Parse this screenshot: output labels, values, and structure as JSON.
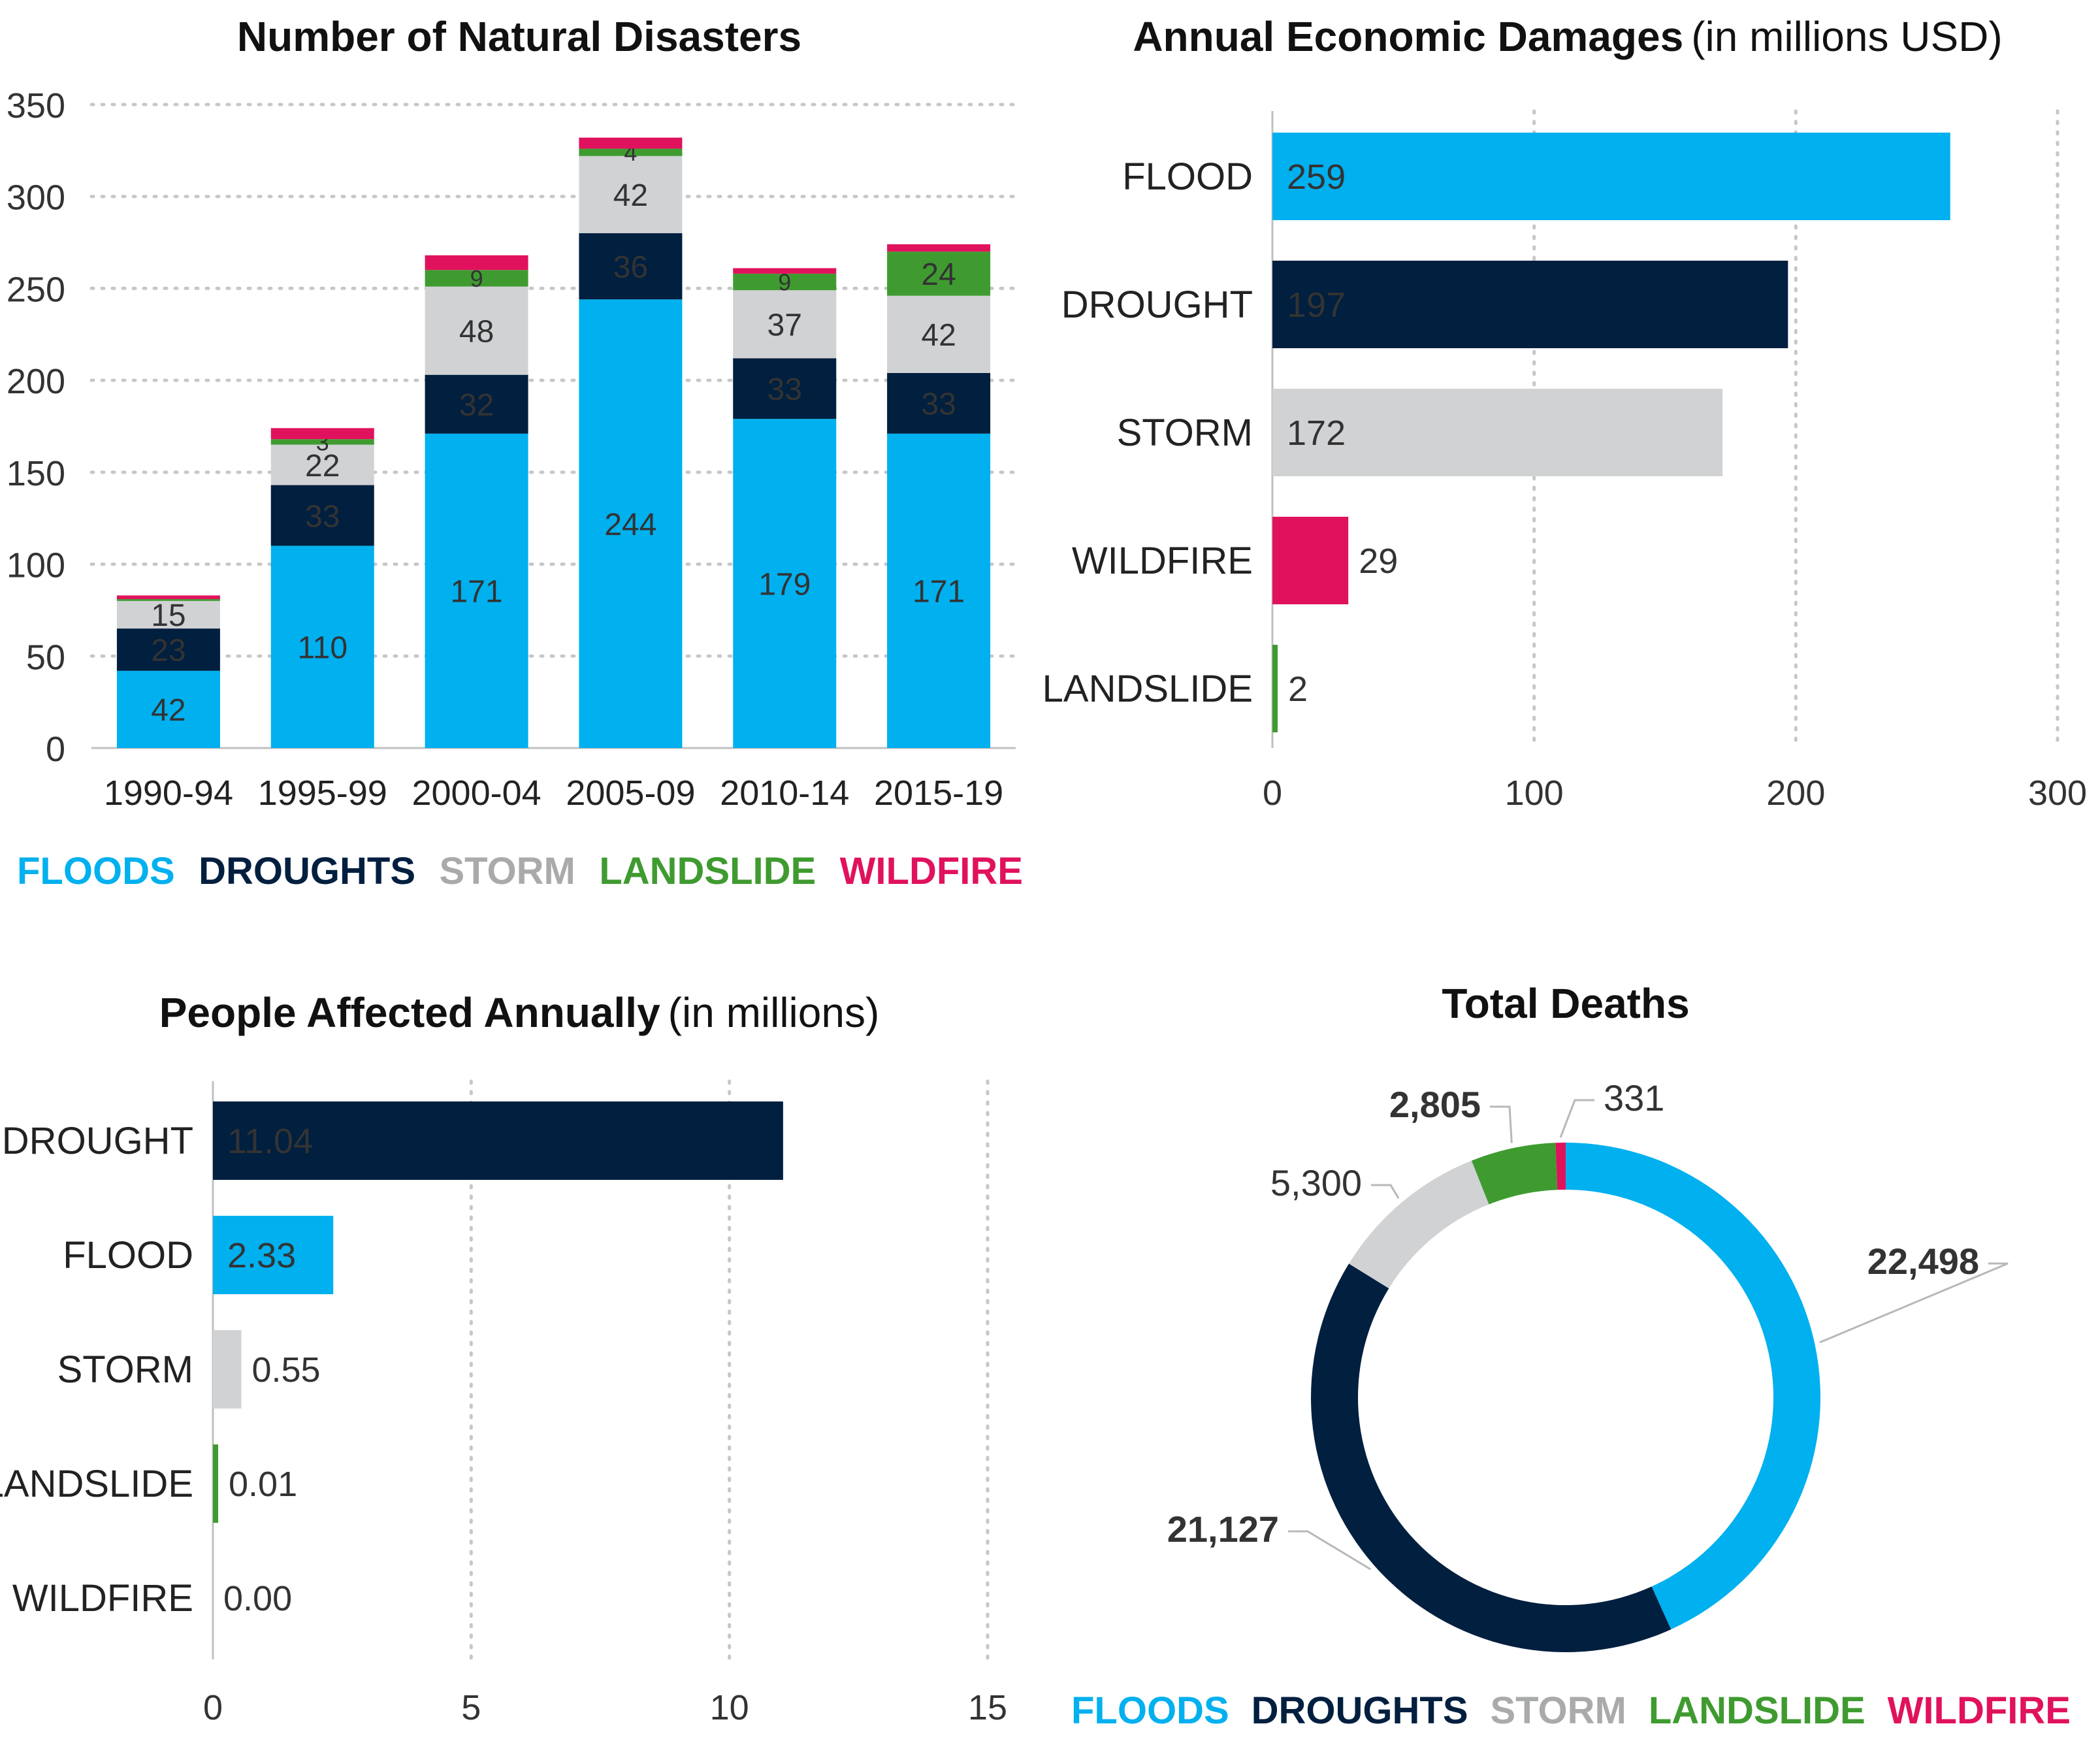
{
  "colors": {
    "floods": "#00b0ef",
    "droughts": "#011f3f",
    "storm": "#d0d2d4",
    "landslide": "#3f9b30",
    "wildfire": "#e0125d",
    "drought_label": "#0a4b86"
  },
  "legend": [
    {
      "label": "FLOODS",
      "color": "#00b0ef"
    },
    {
      "label": "DROUGHTS",
      "color": "#011f3f"
    },
    {
      "label": "STORM",
      "color": "#a9aaab"
    },
    {
      "label": "LANDSLIDE",
      "color": "#3f9b30"
    },
    {
      "label": "WILDFIRE",
      "color": "#e0125d"
    }
  ],
  "chart_data": [
    {
      "type": "bar",
      "stacked": true,
      "title": "Number of Natural Disasters",
      "categories": [
        "1990-94",
        "1995-99",
        "2000-04",
        "2005-09",
        "2010-14",
        "2015-19"
      ],
      "ylim": [
        0,
        350
      ],
      "yticks": [
        0,
        50,
        100,
        150,
        200,
        250,
        300,
        350
      ],
      "series": [
        {
          "name": "FLOODS",
          "values": [
            42,
            110,
            171,
            244,
            179,
            171
          ],
          "labels": [
            "42",
            "110",
            "171",
            "244",
            "179",
            "171"
          ]
        },
        {
          "name": "DROUGHTS",
          "values": [
            23,
            33,
            32,
            36,
            33,
            33
          ],
          "labels": [
            "23",
            "33",
            "32",
            "36",
            "33",
            "33"
          ]
        },
        {
          "name": "STORM",
          "values": [
            15,
            22,
            48,
            42,
            37,
            42
          ],
          "labels": [
            "15",
            "22",
            "48",
            "42",
            "37",
            "42"
          ]
        },
        {
          "name": "LANDSLIDE",
          "values": [
            1,
            3,
            9,
            4,
            9,
            24
          ],
          "labels": [
            "",
            "3",
            "9",
            "4",
            "9",
            "24"
          ]
        },
        {
          "name": "WILDFIRE",
          "values": [
            2,
            6,
            8,
            6,
            3,
            4
          ],
          "labels": [
            "",
            "",
            "",
            "",
            "",
            ""
          ]
        }
      ]
    },
    {
      "type": "bar",
      "orientation": "horizontal",
      "title": "Annual Economic Damages",
      "subtitle": "(in millions USD)",
      "categories": [
        "FLOOD",
        "DROUGHT",
        "STORM",
        "WILDFIRE",
        "LANDSLIDE"
      ],
      "values": [
        259,
        197,
        172,
        29,
        2
      ],
      "labels": [
        "259",
        "197",
        "172",
        "29",
        "2"
      ],
      "xlim": [
        0,
        300
      ],
      "xticks": [
        0,
        100,
        200,
        300
      ]
    },
    {
      "type": "bar",
      "orientation": "horizontal",
      "title": "People Affected Annually",
      "subtitle": "(in millions)",
      "categories": [
        "DROUGHT",
        "FLOOD",
        "STORM",
        "LANDSLIDE",
        "WILDFIRE"
      ],
      "values": [
        11.04,
        2.33,
        0.55,
        0.01,
        0.0
      ],
      "labels": [
        "11.04",
        "2.33",
        "0.55",
        "0.01",
        "0.00"
      ],
      "xlim": [
        0,
        15
      ],
      "xticks": [
        0,
        5,
        10,
        15
      ]
    },
    {
      "type": "pie",
      "donut": true,
      "title": "Total Deaths",
      "categories": [
        "FLOODS",
        "DROUGHTS",
        "STORM",
        "LANDSLIDE",
        "WILDFIRE"
      ],
      "values": [
        22498,
        21127,
        5300,
        2805,
        331
      ],
      "labels": [
        "22,498",
        "21,127",
        "5,300",
        "2,805",
        "331"
      ]
    }
  ]
}
